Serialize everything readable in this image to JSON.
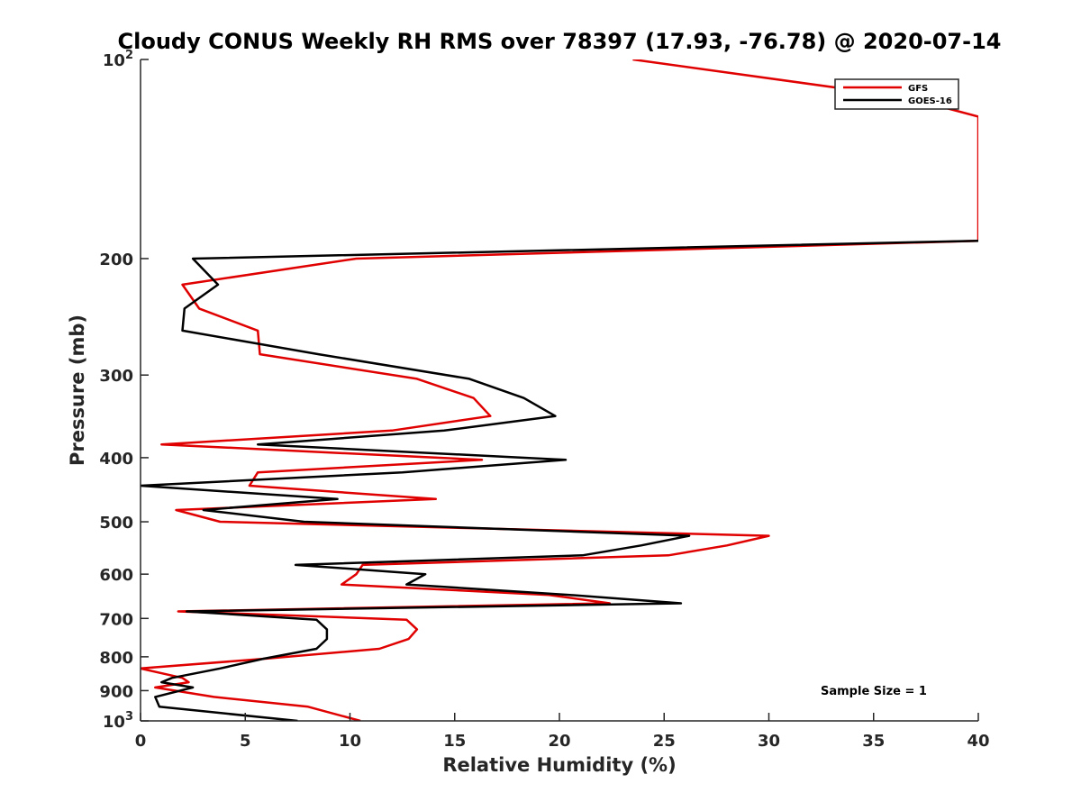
{
  "chart_data": {
    "type": "line",
    "title": "Cloudy CONUS Weekly RH RMS over 78397 (17.93, -76.78) @ 2020-07-14",
    "xlabel": "Relative Humidity (%)",
    "ylabel": "Pressure (mb)",
    "xlim": [
      0,
      40
    ],
    "ylim": [
      100,
      1000
    ],
    "y_scale": "log",
    "y_reversed": true,
    "x_ticks": [
      "0",
      "5",
      "10",
      "15",
      "20",
      "25",
      "30",
      "35",
      "40"
    ],
    "y_ticks": [
      {
        "value": 100,
        "base": "10",
        "exp": "2"
      },
      {
        "value": 200,
        "label": "200"
      },
      {
        "value": 300,
        "label": "300"
      },
      {
        "value": 400,
        "label": "400"
      },
      {
        "value": 500,
        "label": "500"
      },
      {
        "value": 600,
        "label": "600"
      },
      {
        "value": 700,
        "label": "700"
      },
      {
        "value": 800,
        "label": "800"
      },
      {
        "value": 900,
        "label": "900"
      },
      {
        "value": 1000,
        "base": "10",
        "exp": "3"
      }
    ],
    "legend_position": "top-right",
    "annotation": "Sample Size = 1",
    "series": [
      {
        "name": "GFS",
        "color": "#e00000",
        "points": [
          [
            23.5,
            100
          ],
          [
            36.5,
            114
          ],
          [
            40,
            122
          ],
          [
            40,
            188
          ],
          [
            10.3,
            200
          ],
          [
            2,
            219
          ],
          [
            2.8,
            238
          ],
          [
            5.6,
            257
          ],
          [
            5.7,
            279
          ],
          [
            13.2,
            304
          ],
          [
            15.9,
            325
          ],
          [
            16.7,
            346
          ],
          [
            12,
            364
          ],
          [
            1,
            382
          ],
          [
            16.3,
            403
          ],
          [
            5.6,
            421
          ],
          [
            5.2,
            441
          ],
          [
            14.1,
            462
          ],
          [
            1.7,
            480
          ],
          [
            3.8,
            500
          ],
          [
            30,
            525
          ],
          [
            28,
            543
          ],
          [
            25.2,
            562
          ],
          [
            10.6,
            581
          ],
          [
            10.3,
            600
          ],
          [
            9.6,
            622
          ],
          [
            19.5,
            645
          ],
          [
            22.4,
            664
          ],
          [
            1.8,
            683
          ],
          [
            12.7,
            703
          ],
          [
            13.2,
            727
          ],
          [
            12.8,
            752
          ],
          [
            11.4,
            778
          ],
          [
            6,
            805
          ],
          [
            0,
            833
          ],
          [
            2,
            861
          ],
          [
            2.3,
            874
          ],
          [
            0.7,
            890
          ],
          [
            3.5,
            920
          ],
          [
            8,
            952
          ],
          [
            10.5,
            1000
          ]
        ]
      },
      {
        "name": "GOES-16",
        "color": "#000000",
        "points": [
          [
            40,
            188
          ],
          [
            2.5,
            200
          ],
          [
            3.7,
            219
          ],
          [
            2.1,
            238
          ],
          [
            2,
            257
          ],
          [
            8.5,
            279
          ],
          [
            15.7,
            304
          ],
          [
            18.3,
            325
          ],
          [
            19.8,
            346
          ],
          [
            14.5,
            364
          ],
          [
            5.6,
            382
          ],
          [
            20.3,
            403
          ],
          [
            12.5,
            421
          ],
          [
            0,
            441
          ],
          [
            9.4,
            462
          ],
          [
            3,
            480
          ],
          [
            7.8,
            500
          ],
          [
            26.2,
            525
          ],
          [
            23.9,
            543
          ],
          [
            21.1,
            562
          ],
          [
            7.4,
            581
          ],
          [
            13.6,
            600
          ],
          [
            12.7,
            622
          ],
          [
            20.5,
            645
          ],
          [
            25.8,
            664
          ],
          [
            2.2,
            683
          ],
          [
            8.4,
            703
          ],
          [
            8.9,
            727
          ],
          [
            8.9,
            752
          ],
          [
            8.4,
            778
          ],
          [
            5.9,
            805
          ],
          [
            3.8,
            833
          ],
          [
            1.5,
            861
          ],
          [
            1,
            874
          ],
          [
            2.5,
            890
          ],
          [
            0.7,
            920
          ],
          [
            0.9,
            952
          ],
          [
            7.5,
            1000
          ]
        ]
      }
    ]
  }
}
